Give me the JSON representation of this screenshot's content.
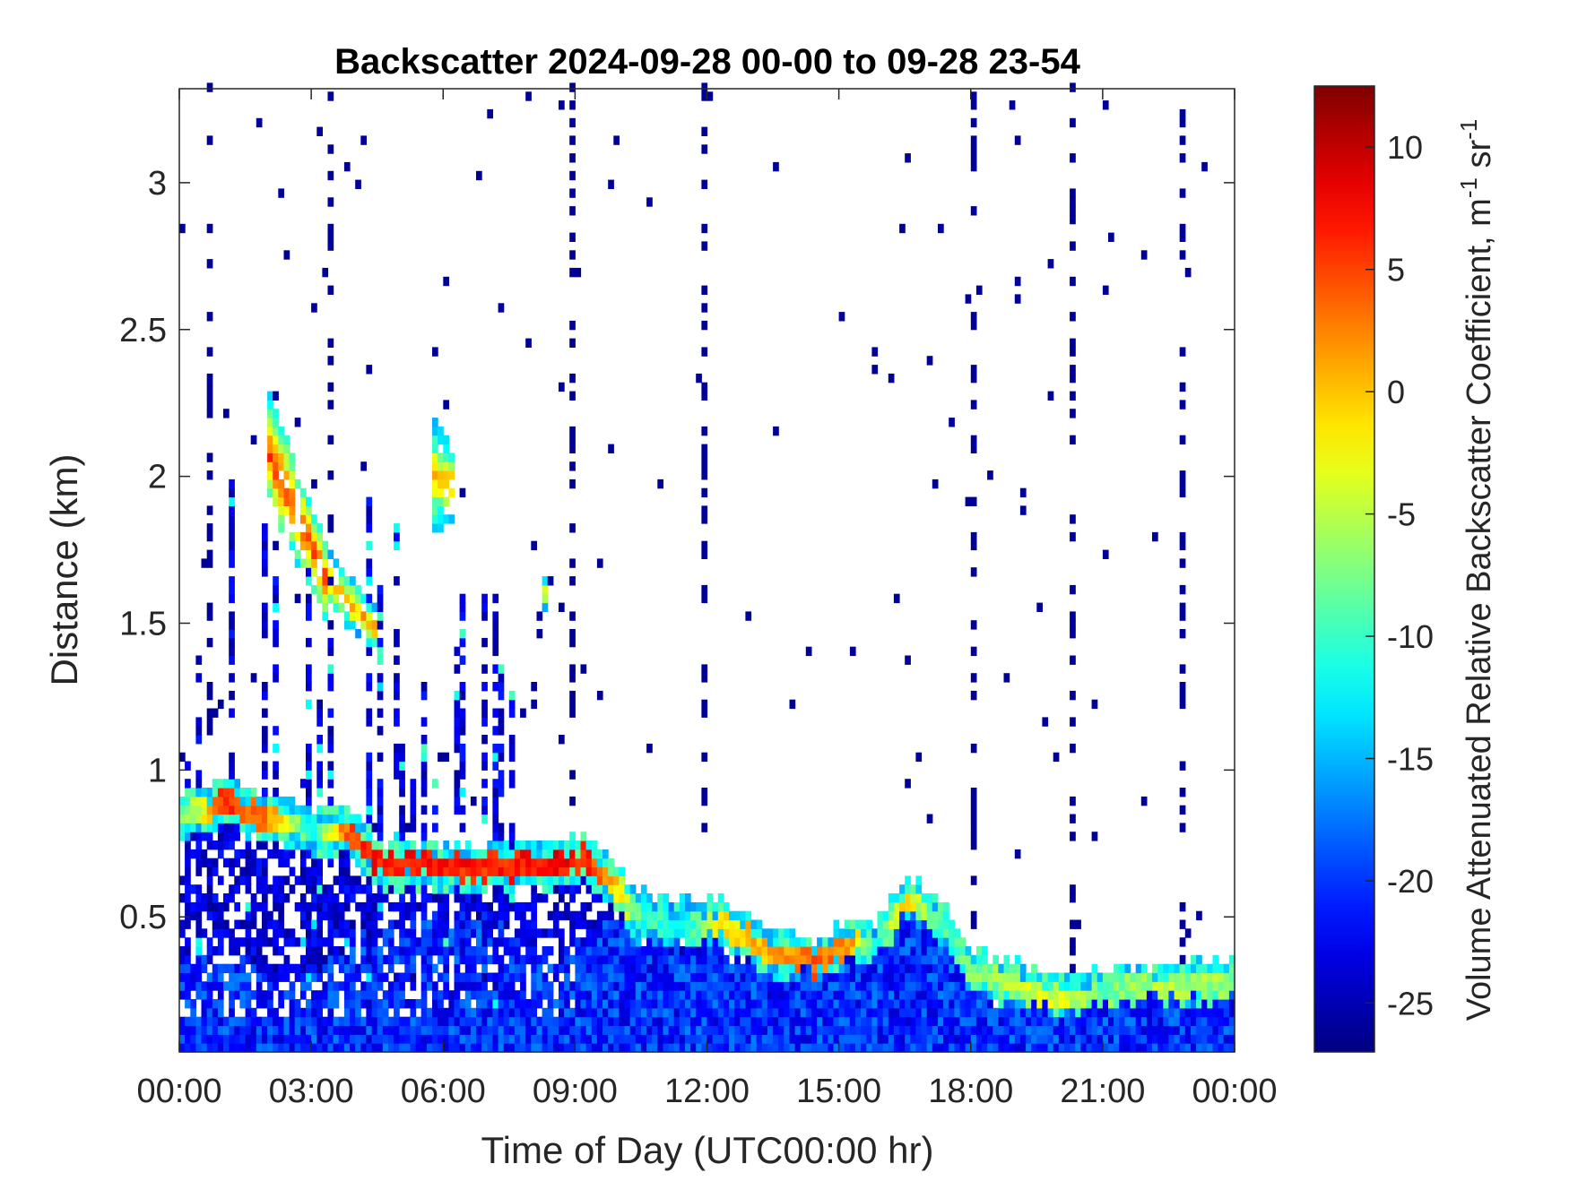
{
  "chart_data": {
    "type": "heatmap",
    "title": "Backscatter 2024-09-28 00-00 to 09-28 23-54",
    "xlabel": "Time of Day (UTC00:00 hr)",
    "ylabel": "Distance (km)",
    "xlim": [
      0,
      24
    ],
    "ylim": [
      0.04,
      3.32
    ],
    "xticks": [
      0,
      3,
      6,
      9,
      12,
      15,
      18,
      21,
      24
    ],
    "xtick_labels": [
      "00:00",
      "03:00",
      "06:00",
      "09:00",
      "12:00",
      "15:00",
      "18:00",
      "21:00",
      "00:00"
    ],
    "yticks": [
      0.5,
      1,
      1.5,
      2,
      2.5,
      3
    ],
    "ytick_labels": [
      "0.5",
      "1",
      "1.5",
      "2",
      "2.5",
      "3"
    ],
    "grid": false,
    "colormap": "jet",
    "colorbar": {
      "label_main": "Volume Attenuated Relative Backscatter Coefficient, m",
      "label_sup1": "-1",
      "label_mid": " sr",
      "label_sup2": "-1",
      "range": [
        -27,
        12.5
      ],
      "ticks": [
        -25,
        -20,
        -15,
        -10,
        -5,
        0,
        5,
        10
      ],
      "tick_labels": [
        "-25",
        "-20",
        "-15",
        "-10",
        "-5",
        "0",
        "5",
        "10"
      ]
    },
    "boundary_layer_profile": {
      "time_hr": [
        0,
        0.5,
        1,
        2,
        3,
        3.8,
        4.5,
        6,
        7,
        8.5,
        9.3,
        9.8,
        10.5,
        11.5,
        12.3,
        13.5,
        14.5,
        15.3,
        15.8,
        16.5,
        17.2,
        18,
        19,
        20,
        21,
        22.5,
        24
      ],
      "mixed_layer_top_km": [
        0.35,
        0.35,
        0.35,
        0.32,
        0.3,
        0.4,
        0.45,
        0.5,
        0.5,
        0.35,
        0.45,
        0.5,
        0.4,
        0.4,
        0.4,
        0.3,
        0.3,
        0.35,
        0.35,
        0.5,
        0.45,
        0.25,
        0.2,
        0.18,
        0.2,
        0.22,
        0.22
      ],
      "aerosol_layer_km": [
        0.85,
        0.85,
        0.88,
        0.85,
        0.8,
        0.8,
        0.68,
        0.67,
        0.67,
        0.68,
        0.7,
        0.62,
        0.5,
        0.48,
        0.47,
        0.38,
        0.34,
        0.42,
        0.4,
        0.55,
        0.5,
        0.3,
        0.27,
        0.22,
        0.24,
        0.27,
        0.28
      ],
      "aerosol_layer_peak_value": [
        -5,
        -2,
        8,
        5,
        -10,
        6,
        9,
        9,
        8,
        10,
        8,
        3,
        -8,
        -10,
        0,
        3,
        6,
        3,
        -10,
        2,
        -8,
        -6,
        -3,
        -2,
        -6,
        -3,
        -5
      ]
    },
    "elevated_plumes": [
      {
        "time_hr": [
          2.0,
          3.4
        ],
        "bottom_km": [
          1.9,
          1.5
        ],
        "top_km": [
          2.3,
          1.75
        ],
        "peak_value": 8
      },
      {
        "time_hr": [
          3.4,
          4.5
        ],
        "bottom_km": [
          1.55,
          1.4
        ],
        "top_km": [
          1.75,
          1.55
        ],
        "peak_value": 5
      },
      {
        "time_hr": [
          5.8,
          6.3
        ],
        "bottom_km": [
          1.8,
          1.85
        ],
        "top_km": [
          2.2,
          2.1
        ],
        "peak_value": 3
      },
      {
        "time_hr": [
          8.2,
          8.4
        ],
        "bottom_km": [
          1.55,
          1.55
        ],
        "top_km": [
          1.65,
          1.65
        ],
        "peak_value": 4
      }
    ],
    "cloud_streak_region": {
      "time_hr": [
        0,
        7.6
      ],
      "top_km": 2.0,
      "typical_value": -21
    },
    "sparse_noise_value": -26
  }
}
